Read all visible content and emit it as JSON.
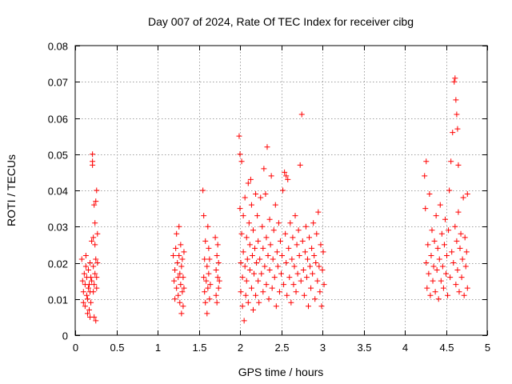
{
  "chart_data": {
    "type": "scatter",
    "title": "Day 007 of 2024, Rate Of TEC Index for receiver cibg",
    "xlabel": "GPS time / hours",
    "ylabel": "ROTI / TECUs",
    "xlim": [
      0,
      5
    ],
    "ylim": [
      0,
      0.08
    ],
    "xticks": [
      0,
      0.5,
      1,
      1.5,
      2,
      2.5,
      3,
      3.5,
      4,
      4.5,
      5
    ],
    "xtick_labels": [
      "0",
      "0.5",
      "1",
      "1.5",
      "2",
      "2.5",
      "3",
      "3.5",
      "4",
      "4.5",
      "5"
    ],
    "yticks": [
      0,
      0.01,
      0.02,
      0.03,
      0.04,
      0.05,
      0.06,
      0.07,
      0.08
    ],
    "ytick_labels": [
      "0",
      "0.01",
      "0.02",
      "0.03",
      "0.04",
      "0.05",
      "0.06",
      "0.07",
      "0.08"
    ],
    "grid": true,
    "marker": "+",
    "color": "#ff0000",
    "series": [
      {
        "name": "ROTI",
        "points": [
          [
            0.08,
            0.021
          ],
          [
            0.09,
            0.015
          ],
          [
            0.1,
            0.012
          ],
          [
            0.1,
            0.009
          ],
          [
            0.11,
            0.017
          ],
          [
            0.12,
            0.014
          ],
          [
            0.12,
            0.008
          ],
          [
            0.13,
            0.019
          ],
          [
            0.14,
            0.011
          ],
          [
            0.14,
            0.016
          ],
          [
            0.15,
            0.01
          ],
          [
            0.16,
            0.013
          ],
          [
            0.16,
            0.018
          ],
          [
            0.17,
            0.007
          ],
          [
            0.17,
            0.014
          ],
          [
            0.18,
            0.012
          ],
          [
            0.18,
            0.02
          ],
          [
            0.19,
            0.016
          ],
          [
            0.19,
            0.009
          ],
          [
            0.2,
            0.026
          ],
          [
            0.2,
            0.015
          ],
          [
            0.21,
            0.048
          ],
          [
            0.21,
            0.047
          ],
          [
            0.21,
            0.05
          ],
          [
            0.22,
            0.012
          ],
          [
            0.22,
            0.019
          ],
          [
            0.22,
            0.027
          ],
          [
            0.23,
            0.005
          ],
          [
            0.23,
            0.014
          ],
          [
            0.23,
            0.036
          ],
          [
            0.24,
            0.017
          ],
          [
            0.24,
            0.025
          ],
          [
            0.24,
            0.031
          ],
          [
            0.25,
            0.004
          ],
          [
            0.25,
            0.021
          ],
          [
            0.25,
            0.037
          ],
          [
            0.26,
            0.04
          ],
          [
            0.26,
            0.016
          ],
          [
            0.26,
            0.013
          ],
          [
            0.27,
            0.02
          ],
          [
            0.27,
            0.028
          ],
          [
            0.15,
            0.006
          ],
          [
            0.18,
            0.005
          ],
          [
            0.13,
            0.022
          ],
          [
            1.19,
            0.022
          ],
          [
            1.2,
            0.015
          ],
          [
            1.21,
            0.01
          ],
          [
            1.21,
            0.018
          ],
          [
            1.22,
            0.024
          ],
          [
            1.23,
            0.013
          ],
          [
            1.23,
            0.028
          ],
          [
            1.24,
            0.02
          ],
          [
            1.25,
            0.016
          ],
          [
            1.25,
            0.011
          ],
          [
            1.26,
            0.03
          ],
          [
            1.26,
            0.022
          ],
          [
            1.27,
            0.009
          ],
          [
            1.27,
            0.017
          ],
          [
            1.28,
            0.014
          ],
          [
            1.28,
            0.025
          ],
          [
            1.29,
            0.006
          ],
          [
            1.29,
            0.019
          ],
          [
            1.3,
            0.012
          ],
          [
            1.3,
            0.021
          ],
          [
            1.31,
            0.016
          ],
          [
            1.31,
            0.008
          ],
          [
            1.32,
            0.023
          ],
          [
            1.32,
            0.013
          ],
          [
            1.55,
            0.04
          ],
          [
            1.56,
            0.033
          ],
          [
            1.56,
            0.016
          ],
          [
            1.57,
            0.012
          ],
          [
            1.57,
            0.021
          ],
          [
            1.58,
            0.009
          ],
          [
            1.58,
            0.026
          ],
          [
            1.59,
            0.015
          ],
          [
            1.6,
            0.019
          ],
          [
            1.6,
            0.006
          ],
          [
            1.61,
            0.03
          ],
          [
            1.61,
            0.013
          ],
          [
            1.62,
            0.024
          ],
          [
            1.62,
            0.017
          ],
          [
            1.63,
            0.01
          ],
          [
            1.63,
            0.021
          ],
          [
            1.64,
            0.014
          ],
          [
            1.7,
            0.027
          ],
          [
            1.71,
            0.018
          ],
          [
            1.71,
            0.011
          ],
          [
            1.72,
            0.022
          ],
          [
            1.72,
            0.009
          ],
          [
            1.73,
            0.016
          ],
          [
            1.73,
            0.025
          ],
          [
            1.74,
            0.013
          ],
          [
            1.74,
            0.02
          ],
          [
            1.75,
            0.015
          ],
          [
            1.99,
            0.055
          ],
          [
            2.0,
            0.05
          ],
          [
            2.0,
            0.035
          ],
          [
            2.01,
            0.02
          ],
          [
            2.01,
            0.012
          ],
          [
            2.02,
            0.048
          ],
          [
            2.02,
            0.028
          ],
          [
            2.03,
            0.008
          ],
          [
            2.03,
            0.016
          ],
          [
            2.04,
            0.033
          ],
          [
            2.04,
            0.023
          ],
          [
            2.05,
            0.004
          ],
          [
            2.06,
            0.038
          ],
          [
            2.06,
            0.019
          ],
          [
            2.07,
            0.011
          ],
          [
            2.08,
            0.027
          ],
          [
            2.08,
            0.015
          ],
          [
            2.09,
            0.021
          ],
          [
            2.1,
            0.042
          ],
          [
            2.1,
            0.009
          ],
          [
            2.11,
            0.031
          ],
          [
            2.12,
            0.018
          ],
          [
            2.12,
            0.025
          ],
          [
            2.13,
            0.043
          ],
          [
            2.14,
            0.013
          ],
          [
            2.14,
            0.036
          ],
          [
            2.15,
            0.022
          ],
          [
            2.16,
            0.007
          ],
          [
            2.16,
            0.029
          ],
          [
            2.17,
            0.017
          ],
          [
            2.18,
            0.024
          ],
          [
            2.19,
            0.039
          ],
          [
            2.19,
            0.011
          ],
          [
            2.2,
            0.02
          ],
          [
            2.21,
            0.033
          ],
          [
            2.22,
            0.015
          ],
          [
            2.22,
            0.026
          ],
          [
            2.23,
            0.009
          ],
          [
            2.24,
            0.021
          ],
          [
            2.25,
            0.038
          ],
          [
            2.26,
            0.017
          ],
          [
            2.27,
            0.03
          ],
          [
            2.28,
            0.012
          ],
          [
            2.28,
            0.024
          ],
          [
            2.29,
            0.046
          ],
          [
            2.3,
            0.019
          ],
          [
            2.31,
            0.039
          ],
          [
            2.32,
            0.027
          ],
          [
            2.32,
            0.014
          ],
          [
            2.33,
            0.052
          ],
          [
            2.34,
            0.022
          ],
          [
            2.35,
            0.01
          ],
          [
            2.36,
            0.032
          ],
          [
            2.36,
            0.018
          ],
          [
            2.37,
            0.025
          ],
          [
            2.38,
            0.044
          ],
          [
            2.39,
            0.013
          ],
          [
            2.4,
            0.021
          ],
          [
            2.41,
            0.029
          ],
          [
            2.42,
            0.016
          ],
          [
            2.43,
            0.036
          ],
          [
            2.44,
            0.008
          ],
          [
            2.45,
            0.023
          ],
          [
            2.46,
            0.019
          ],
          [
            2.47,
            0.031
          ],
          [
            2.48,
            0.012
          ],
          [
            2.49,
            0.026
          ],
          [
            2.5,
            0.017
          ],
          [
            2.51,
            0.022
          ],
          [
            2.52,
            0.04
          ],
          [
            2.53,
            0.014
          ],
          [
            2.54,
            0.045
          ],
          [
            2.55,
            0.028
          ],
          [
            2.56,
            0.044
          ],
          [
            2.56,
            0.02
          ],
          [
            2.57,
            0.011
          ],
          [
            2.58,
            0.043
          ],
          [
            2.59,
            0.024
          ],
          [
            2.6,
            0.016
          ],
          [
            2.61,
            0.031
          ],
          [
            2.62,
            0.009
          ],
          [
            2.63,
            0.021
          ],
          [
            2.64,
            0.027
          ],
          [
            2.65,
            0.014
          ],
          [
            2.66,
            0.019
          ],
          [
            2.67,
            0.033
          ],
          [
            2.68,
            0.012
          ],
          [
            2.69,
            0.025
          ],
          [
            2.7,
            0.017
          ],
          [
            2.71,
            0.029
          ],
          [
            2.72,
            0.022
          ],
          [
            2.73,
            0.047
          ],
          [
            2.74,
            0.015
          ],
          [
            2.75,
            0.061
          ],
          [
            2.76,
            0.026
          ],
          [
            2.77,
            0.018
          ],
          [
            2.78,
            0.011
          ],
          [
            2.79,
            0.023
          ],
          [
            2.8,
            0.03
          ],
          [
            2.81,
            0.016
          ],
          [
            2.82,
            0.021
          ],
          [
            2.83,
            0.008
          ],
          [
            2.84,
            0.027
          ],
          [
            2.85,
            0.019
          ],
          [
            2.86,
            0.013
          ],
          [
            2.87,
            0.024
          ],
          [
            2.88,
            0.017
          ],
          [
            2.89,
            0.031
          ],
          [
            2.9,
            0.022
          ],
          [
            2.91,
            0.01
          ],
          [
            2.92,
            0.02
          ],
          [
            2.93,
            0.028
          ],
          [
            2.94,
            0.015
          ],
          [
            2.95,
            0.034
          ],
          [
            2.96,
            0.019
          ],
          [
            2.97,
            0.012
          ],
          [
            2.98,
            0.025
          ],
          [
            2.99,
            0.008
          ],
          [
            3.0,
            0.018
          ],
          [
            3.01,
            0.023
          ],
          [
            3.02,
            0.014
          ],
          [
            4.24,
            0.044
          ],
          [
            4.25,
            0.035
          ],
          [
            4.26,
            0.048
          ],
          [
            4.26,
            0.02
          ],
          [
            4.27,
            0.013
          ],
          [
            4.28,
            0.025
          ],
          [
            4.29,
            0.017
          ],
          [
            4.3,
            0.039
          ],
          [
            4.31,
            0.011
          ],
          [
            4.32,
            0.022
          ],
          [
            4.33,
            0.029
          ],
          [
            4.34,
            0.015
          ],
          [
            4.35,
            0.019
          ],
          [
            4.36,
            0.026
          ],
          [
            4.37,
            0.012
          ],
          [
            4.38,
            0.033
          ],
          [
            4.39,
            0.018
          ],
          [
            4.4,
            0.024
          ],
          [
            4.41,
            0.01
          ],
          [
            4.42,
            0.021
          ],
          [
            4.43,
            0.036
          ],
          [
            4.44,
            0.015
          ],
          [
            4.45,
            0.028
          ],
          [
            4.46,
            0.019
          ],
          [
            4.47,
            0.013
          ],
          [
            4.48,
            0.025
          ],
          [
            4.49,
            0.032
          ],
          [
            4.5,
            0.017
          ],
          [
            4.51,
            0.022
          ],
          [
            4.52,
            0.011
          ],
          [
            4.53,
            0.029
          ],
          [
            4.54,
            0.04
          ],
          [
            4.55,
            0.016
          ],
          [
            4.56,
            0.048
          ],
          [
            4.57,
            0.023
          ],
          [
            4.58,
            0.056
          ],
          [
            4.59,
            0.02
          ],
          [
            4.6,
            0.07
          ],
          [
            4.61,
            0.071
          ],
          [
            4.61,
            0.03
          ],
          [
            4.62,
            0.065
          ],
          [
            4.62,
            0.014
          ],
          [
            4.63,
            0.061
          ],
          [
            4.63,
            0.026
          ],
          [
            4.64,
            0.057
          ],
          [
            4.64,
            0.018
          ],
          [
            4.65,
            0.047
          ],
          [
            4.65,
            0.034
          ],
          [
            4.66,
            0.012
          ],
          [
            4.67,
            0.024
          ],
          [
            4.68,
            0.028
          ],
          [
            4.69,
            0.016
          ],
          [
            4.7,
            0.021
          ],
          [
            4.71,
            0.038
          ],
          [
            4.72,
            0.011
          ],
          [
            4.73,
            0.027
          ],
          [
            4.74,
            0.019
          ],
          [
            4.75,
            0.023
          ],
          [
            4.76,
            0.039
          ],
          [
            4.76,
            0.013
          ]
        ]
      }
    ]
  }
}
